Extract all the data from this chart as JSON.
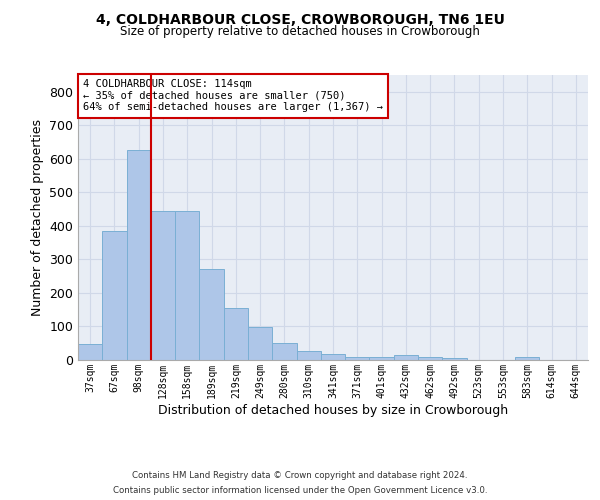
{
  "title1": "4, COLDHARBOUR CLOSE, CROWBOROUGH, TN6 1EU",
  "title2": "Size of property relative to detached houses in Crowborough",
  "xlabel": "Distribution of detached houses by size in Crowborough",
  "ylabel": "Number of detached properties",
  "categories": [
    "37sqm",
    "67sqm",
    "98sqm",
    "128sqm",
    "158sqm",
    "189sqm",
    "219sqm",
    "249sqm",
    "280sqm",
    "310sqm",
    "341sqm",
    "371sqm",
    "401sqm",
    "432sqm",
    "462sqm",
    "492sqm",
    "523sqm",
    "553sqm",
    "583sqm",
    "614sqm",
    "644sqm"
  ],
  "values": [
    47,
    385,
    625,
    443,
    443,
    270,
    155,
    97,
    52,
    28,
    18,
    10,
    10,
    15,
    10,
    7,
    0,
    0,
    8,
    0,
    0
  ],
  "bar_color": "#aec6e8",
  "bar_edge_color": "#7aafd4",
  "grid_color": "#d0d8e8",
  "vline_color": "#cc0000",
  "annotation_text": "4 COLDHARBOUR CLOSE: 114sqm\n← 35% of detached houses are smaller (750)\n64% of semi-detached houses are larger (1,367) →",
  "annotation_box_color": "#ffffff",
  "annotation_box_edge": "#cc0000",
  "footer1": "Contains HM Land Registry data © Crown copyright and database right 2024.",
  "footer2": "Contains public sector information licensed under the Open Government Licence v3.0.",
  "ylim": [
    0,
    850
  ],
  "background_color": "#e8edf5",
  "fig_bg": "#ffffff"
}
